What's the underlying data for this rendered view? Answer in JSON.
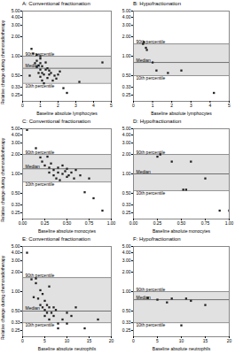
{
  "chart_data": [
    {
      "type": "scatter",
      "title": "A: Conventional fractionation",
      "x_label": "Baseline absolute lymphocytes",
      "y_label": "Relative change during chemoradiotherapy",
      "x": [
        0.4,
        0.5,
        0.6,
        0.7,
        0.8,
        0.8,
        0.8,
        0.9,
        0.9,
        1.0,
        1.0,
        1.0,
        1.0,
        1.0,
        1.1,
        1.1,
        1.1,
        1.2,
        1.2,
        1.3,
        1.3,
        1.4,
        1.4,
        1.5,
        1.5,
        1.6,
        1.7,
        1.8,
        1.9,
        2.0,
        2.1,
        2.3,
        2.5,
        3.2,
        4.5
      ],
      "values": [
        0.5,
        1.3,
        1.1,
        0.78,
        0.68,
        0.85,
        1.05,
        0.55,
        0.72,
        0.48,
        0.62,
        0.78,
        0.92,
        1.0,
        0.42,
        0.55,
        0.7,
        0.38,
        0.52,
        0.62,
        0.8,
        0.46,
        0.65,
        0.52,
        0.6,
        0.55,
        0.42,
        0.5,
        0.45,
        0.52,
        0.58,
        0.32,
        0.27,
        0.4,
        0.8
      ],
      "color": "#222222",
      "marker": "square",
      "log": "y",
      "xlim": [
        0,
        5
      ],
      "xticks": [
        0,
        1,
        2,
        3,
        4,
        5
      ],
      "ylim": [
        0.2,
        5
      ],
      "yticks": [
        0.25,
        0.33,
        {
          "value": 0.5,
          "label": "0.50"
        },
        {
          "value": 1,
          "label": "1.00"
        },
        {
          "value": 2,
          "label": "2.00"
        },
        {
          "value": 3,
          "label": "3.00"
        },
        {
          "value": 4,
          "label": "4.00"
        },
        {
          "value": 5,
          "label": "5.00"
        }
      ],
      "band": {
        "from": 0.38,
        "to": 1.0,
        "color": "#c8c8c8"
      },
      "reference_lines": [
        {
          "value": 1.0,
          "label": "90th percentile",
          "color": "#909090"
        },
        {
          "value": 0.65,
          "label": "Median",
          "color": "#707070"
        },
        {
          "value": 0.38,
          "label": "10th percentile",
          "color": "#909090"
        }
      ]
    },
    {
      "type": "scatter",
      "title": "B: Hypofractionation",
      "x_label": "Baseline absolute lymphocytes",
      "x": [
        0.5,
        0.55,
        0.65,
        0.7,
        1.0,
        1.2,
        1.8,
        2.5,
        4.2
      ],
      "values": [
        1.55,
        1.65,
        1.35,
        1.25,
        0.8,
        0.6,
        0.55,
        0.6,
        0.27
      ],
      "color": "#222222",
      "marker": "square",
      "log": "y",
      "xlim": [
        0,
        5
      ],
      "xticks": [
        0,
        1,
        2,
        3,
        4,
        5
      ],
      "ylim": [
        0.2,
        5
      ],
      "yticks": [
        0.25,
        0.33,
        {
          "value": 0.5,
          "label": "0.50"
        },
        {
          "value": 1,
          "label": "1.00"
        },
        {
          "value": 2,
          "label": "2.00"
        },
        {
          "value": 3,
          "label": "3.00"
        },
        {
          "value": 4,
          "label": "4.00"
        },
        {
          "value": 5,
          "label": "5.00"
        }
      ],
      "band": {
        "from": 0.5,
        "to": 1.55,
        "color": "#c8c8c8"
      },
      "reference_lines": [
        {
          "value": 1.55,
          "label": "90th percentile",
          "color": "#909090"
        },
        {
          "value": 0.8,
          "label": "Median",
          "color": "#707070"
        },
        {
          "value": 0.5,
          "label": "10th percentile",
          "color": "#909090"
        }
      ]
    },
    {
      "type": "scatter",
      "title": "C: Conventional fractionation",
      "x_label": "Baseline absolute monocytes",
      "y_label": "Relative change during chemoradiotherapy",
      "x": [
        0.05,
        0.15,
        0.2,
        0.22,
        0.25,
        0.28,
        0.3,
        0.3,
        0.32,
        0.35,
        0.35,
        0.38,
        0.4,
        0.4,
        0.42,
        0.45,
        0.45,
        0.48,
        0.5,
        0.5,
        0.52,
        0.55,
        0.58,
        0.6,
        0.65,
        0.7,
        0.75,
        0.8,
        0.9
      ],
      "values": [
        4.8,
        2.5,
        1.8,
        1.55,
        1.35,
        1.85,
        1.25,
        1.05,
        1.45,
        0.95,
        1.15,
        0.85,
        1.05,
        1.25,
        0.8,
        1.35,
        1.0,
        1.1,
        0.9,
        1.2,
        0.95,
        1.05,
        0.85,
        1.15,
        0.95,
        0.52,
        0.85,
        0.42,
        0.27
      ],
      "color": "#222222",
      "marker": "square",
      "log": "y",
      "xlim": [
        0,
        1
      ],
      "xticks": [
        {
          "value": 0,
          "label": "0.00"
        },
        0.25,
        {
          "value": 0.5,
          "label": "0.50"
        },
        0.75,
        {
          "value": 1,
          "label": "1.00"
        }
      ],
      "ylim": [
        0.2,
        5
      ],
      "yticks": [
        0.25,
        0.33,
        {
          "value": 0.5,
          "label": "0.50"
        },
        {
          "value": 1,
          "label": "1.00"
        },
        {
          "value": 2,
          "label": "2.00"
        },
        {
          "value": 3,
          "label": "3.00"
        },
        {
          "value": 4,
          "label": "4.00"
        },
        {
          "value": 5,
          "label": "5.00"
        }
      ],
      "band": {
        "from": 0.75,
        "to": 2.0,
        "color": "#c8c8c8"
      },
      "reference_lines": [
        {
          "value": 2.0,
          "label": "90th percentile",
          "color": "#909090"
        },
        {
          "value": 1.2,
          "label": "Median",
          "color": "#707070"
        },
        {
          "value": 0.75,
          "label": "10th percentile",
          "color": "#909090"
        }
      ]
    },
    {
      "type": "scatter",
      "title": "D: Hypofractionation",
      "x_label": "Baseline absolute monocytes",
      "x": [
        0.25,
        0.28,
        0.4,
        0.52,
        0.55,
        0.6,
        0.75,
        0.9,
        1.0
      ],
      "values": [
        1.85,
        2.0,
        1.55,
        0.57,
        0.57,
        1.55,
        0.85,
        0.27,
        0.27
      ],
      "color": "#222222",
      "marker": "square",
      "log": "y",
      "xlim": [
        0,
        1
      ],
      "xticks": [
        {
          "value": 0,
          "label": "0.00"
        },
        0.25,
        {
          "value": 0.5,
          "label": "0.50"
        },
        0.75,
        {
          "value": 1,
          "label": "1.00"
        }
      ],
      "ylim": [
        0.2,
        5
      ],
      "yticks": [
        0.25,
        0.33,
        {
          "value": 0.5,
          "label": "0.50"
        },
        {
          "value": 1,
          "label": "1.00"
        },
        {
          "value": 2,
          "label": "2.00"
        },
        {
          "value": 3,
          "label": "3.00"
        },
        {
          "value": 4,
          "label": "4.00"
        },
        {
          "value": 5,
          "label": "5.00"
        }
      ],
      "band": {
        "from": 0.55,
        "to": 2.0,
        "color": "#c8c8c8"
      },
      "reference_lines": [
        {
          "value": 2.0,
          "label": "90th percentile",
          "color": "#909090"
        },
        {
          "value": 1.0,
          "label": "Median",
          "color": "#707070"
        },
        {
          "value": 0.55,
          "label": "10th percentile",
          "color": "#909090"
        }
      ]
    },
    {
      "type": "scatter",
      "title": "E: Conventional fractionation",
      "x_label": "Baseline absolute neutrophils",
      "y_label": "Relative change during chemoradiotherapy",
      "x": [
        1.0,
        2.0,
        2.5,
        3.0,
        3.0,
        3.5,
        4.0,
        4.0,
        4.5,
        4.5,
        5.0,
        5.0,
        5.0,
        5.5,
        5.5,
        6.0,
        6.0,
        6.0,
        6.5,
        7.0,
        7.0,
        7.5,
        8.0,
        8.0,
        9.0,
        10.0,
        10.0,
        11.0,
        12.0,
        14.0,
        17.0
      ],
      "values": [
        4.0,
        1.55,
        0.82,
        1.6,
        1.35,
        0.78,
        0.62,
        1.05,
        0.57,
        0.92,
        0.52,
        0.72,
        0.42,
        0.62,
        0.47,
        0.57,
        0.37,
        1.2,
        0.47,
        0.57,
        0.42,
        0.52,
        0.32,
        0.27,
        0.37,
        0.47,
        0.32,
        0.42,
        0.57,
        0.27,
        0.37
      ],
      "color": "#222222",
      "marker": "square",
      "log": "y",
      "xlim": [
        0,
        20
      ],
      "xticks": [
        0,
        5,
        10,
        15,
        20
      ],
      "ylim": [
        0.2,
        5
      ],
      "yticks": [
        0.25,
        0.33,
        {
          "value": 0.5,
          "label": "0.50"
        },
        {
          "value": 1,
          "label": "1.00"
        },
        {
          "value": 2,
          "label": "2.00"
        },
        {
          "value": 3,
          "label": "3.00"
        },
        {
          "value": 4,
          "label": "4.00"
        },
        {
          "value": 5,
          "label": "5.00"
        }
      ],
      "band": {
        "from": 0.33,
        "to": 1.65,
        "color": "#c8c8c8"
      },
      "reference_lines": [
        {
          "value": 1.65,
          "label": "90th percentile",
          "color": "#909090"
        },
        {
          "value": 0.5,
          "label": "Median",
          "color": "#707070"
        },
        {
          "value": 0.33,
          "label": "10th percentile",
          "color": "#909090"
        }
      ]
    },
    {
      "type": "scatter",
      "title": "F: Hypofractionation",
      "x_label": "Baseline absolute neutrophils",
      "x": [
        3.0,
        5.0,
        7.0,
        8.0,
        10.0,
        11.0,
        12.0,
        15.0
      ],
      "values": [
        0.8,
        0.75,
        0.68,
        0.78,
        0.3,
        0.78,
        0.72,
        0.62
      ],
      "color": "#222222",
      "marker": "square",
      "log": "y",
      "xlim": [
        0,
        20
      ],
      "xticks": [
        0,
        5,
        10,
        15,
        20
      ],
      "ylim": [
        0.2,
        5
      ],
      "yticks": [
        0.25,
        0.33,
        {
          "value": 0.5,
          "label": "0.50"
        },
        {
          "value": 1,
          "label": "1.00"
        },
        {
          "value": 2,
          "label": "2.00"
        },
        {
          "value": 3,
          "label": "3.00"
        },
        {
          "value": 4,
          "label": "4.00"
        },
        {
          "value": 5,
          "label": "5.00"
        }
      ],
      "band": {
        "from": 0.33,
        "to": 1.0,
        "color": "#c8c8c8"
      },
      "reference_lines": [
        {
          "value": 1.0,
          "label": "90th percentile",
          "color": "#909090"
        },
        {
          "value": 0.75,
          "label": "Median",
          "color": "#707070"
        },
        {
          "value": 0.33,
          "label": "10th percentile",
          "color": "#909090"
        }
      ]
    }
  ]
}
